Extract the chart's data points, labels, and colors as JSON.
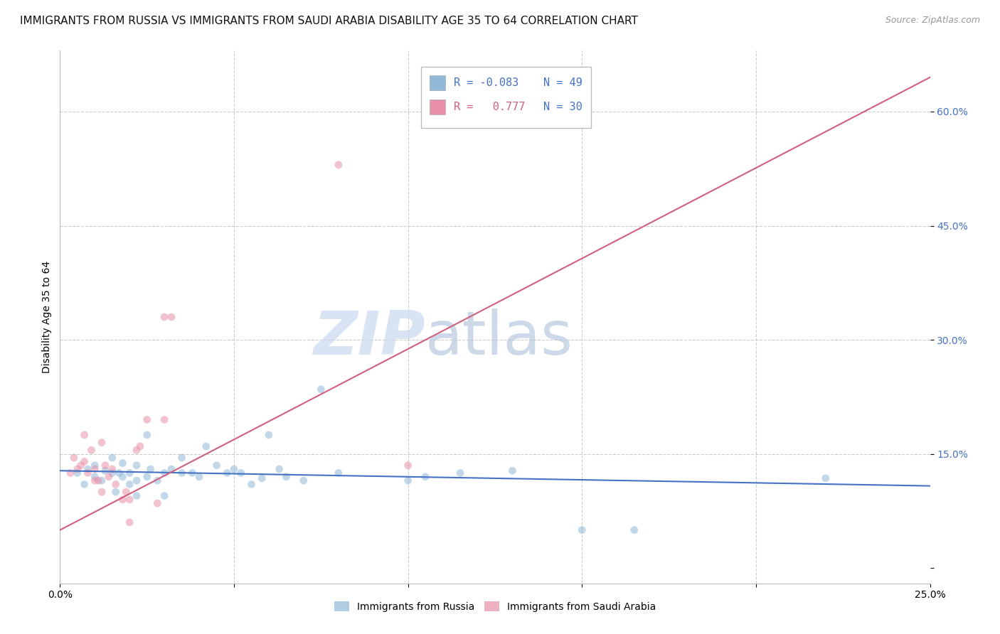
{
  "title": "IMMIGRANTS FROM RUSSIA VS IMMIGRANTS FROM SAUDI ARABIA DISABILITY AGE 35 TO 64 CORRELATION CHART",
  "source": "Source: ZipAtlas.com",
  "ylabel": "Disability Age 35 to 64",
  "xlim": [
    0.0,
    0.25
  ],
  "ylim": [
    -0.02,
    0.68
  ],
  "xticks": [
    0.0,
    0.05,
    0.1,
    0.15,
    0.2,
    0.25
  ],
  "xticklabels": [
    "0.0%",
    "",
    "",
    "",
    "",
    "25.0%"
  ],
  "yticks": [
    0.0,
    0.15,
    0.3,
    0.45,
    0.6
  ],
  "yticklabels": [
    "",
    "15.0%",
    "30.0%",
    "45.0%",
    "60.0%"
  ],
  "watermark_zip": "ZIP",
  "watermark_atlas": "atlas",
  "russia_scatter": [
    [
      0.005,
      0.125
    ],
    [
      0.007,
      0.11
    ],
    [
      0.008,
      0.13
    ],
    [
      0.01,
      0.12
    ],
    [
      0.01,
      0.135
    ],
    [
      0.012,
      0.115
    ],
    [
      0.013,
      0.128
    ],
    [
      0.015,
      0.125
    ],
    [
      0.015,
      0.145
    ],
    [
      0.016,
      0.1
    ],
    [
      0.017,
      0.125
    ],
    [
      0.018,
      0.138
    ],
    [
      0.018,
      0.12
    ],
    [
      0.02,
      0.11
    ],
    [
      0.02,
      0.125
    ],
    [
      0.022,
      0.135
    ],
    [
      0.022,
      0.115
    ],
    [
      0.022,
      0.095
    ],
    [
      0.025,
      0.175
    ],
    [
      0.025,
      0.12
    ],
    [
      0.026,
      0.13
    ],
    [
      0.028,
      0.115
    ],
    [
      0.03,
      0.125
    ],
    [
      0.03,
      0.095
    ],
    [
      0.032,
      0.13
    ],
    [
      0.035,
      0.145
    ],
    [
      0.035,
      0.125
    ],
    [
      0.038,
      0.125
    ],
    [
      0.04,
      0.12
    ],
    [
      0.042,
      0.16
    ],
    [
      0.045,
      0.135
    ],
    [
      0.048,
      0.125
    ],
    [
      0.05,
      0.13
    ],
    [
      0.052,
      0.125
    ],
    [
      0.055,
      0.11
    ],
    [
      0.058,
      0.118
    ],
    [
      0.06,
      0.175
    ],
    [
      0.063,
      0.13
    ],
    [
      0.065,
      0.12
    ],
    [
      0.07,
      0.115
    ],
    [
      0.075,
      0.235
    ],
    [
      0.08,
      0.125
    ],
    [
      0.1,
      0.115
    ],
    [
      0.105,
      0.12
    ],
    [
      0.115,
      0.125
    ],
    [
      0.13,
      0.128
    ],
    [
      0.15,
      0.05
    ],
    [
      0.165,
      0.05
    ],
    [
      0.22,
      0.118
    ]
  ],
  "saudi_scatter": [
    [
      0.003,
      0.125
    ],
    [
      0.004,
      0.145
    ],
    [
      0.005,
      0.13
    ],
    [
      0.006,
      0.135
    ],
    [
      0.007,
      0.14
    ],
    [
      0.007,
      0.175
    ],
    [
      0.008,
      0.125
    ],
    [
      0.009,
      0.155
    ],
    [
      0.01,
      0.13
    ],
    [
      0.01,
      0.115
    ],
    [
      0.011,
      0.115
    ],
    [
      0.012,
      0.1
    ],
    [
      0.012,
      0.165
    ],
    [
      0.013,
      0.135
    ],
    [
      0.014,
      0.12
    ],
    [
      0.015,
      0.13
    ],
    [
      0.016,
      0.11
    ],
    [
      0.018,
      0.09
    ],
    [
      0.019,
      0.1
    ],
    [
      0.02,
      0.06
    ],
    [
      0.02,
      0.09
    ],
    [
      0.022,
      0.155
    ],
    [
      0.023,
      0.16
    ],
    [
      0.025,
      0.195
    ],
    [
      0.028,
      0.085
    ],
    [
      0.03,
      0.195
    ],
    [
      0.03,
      0.33
    ],
    [
      0.032,
      0.33
    ],
    [
      0.08,
      0.53
    ],
    [
      0.1,
      0.135
    ]
  ],
  "russia_line_x": [
    0.0,
    0.25
  ],
  "russia_line_y": [
    0.128,
    0.108
  ],
  "saudi_line_x": [
    0.0,
    0.25
  ],
  "saudi_line_y": [
    0.05,
    0.645
  ],
  "russia_scatter_color": "#90b8d8",
  "saudi_scatter_color": "#e890a8",
  "russia_line_color": "#4472c4",
  "saudi_line_color": "#d06080",
  "scatter_size": 60,
  "scatter_alpha": 0.55,
  "background_color": "#ffffff",
  "grid_color": "#cccccc",
  "title_fontsize": 11,
  "axis_label_fontsize": 10,
  "tick_fontsize": 10,
  "r_russia": "-0.083",
  "n_russia": "49",
  "r_saudi": "0.777",
  "n_saudi": "30"
}
